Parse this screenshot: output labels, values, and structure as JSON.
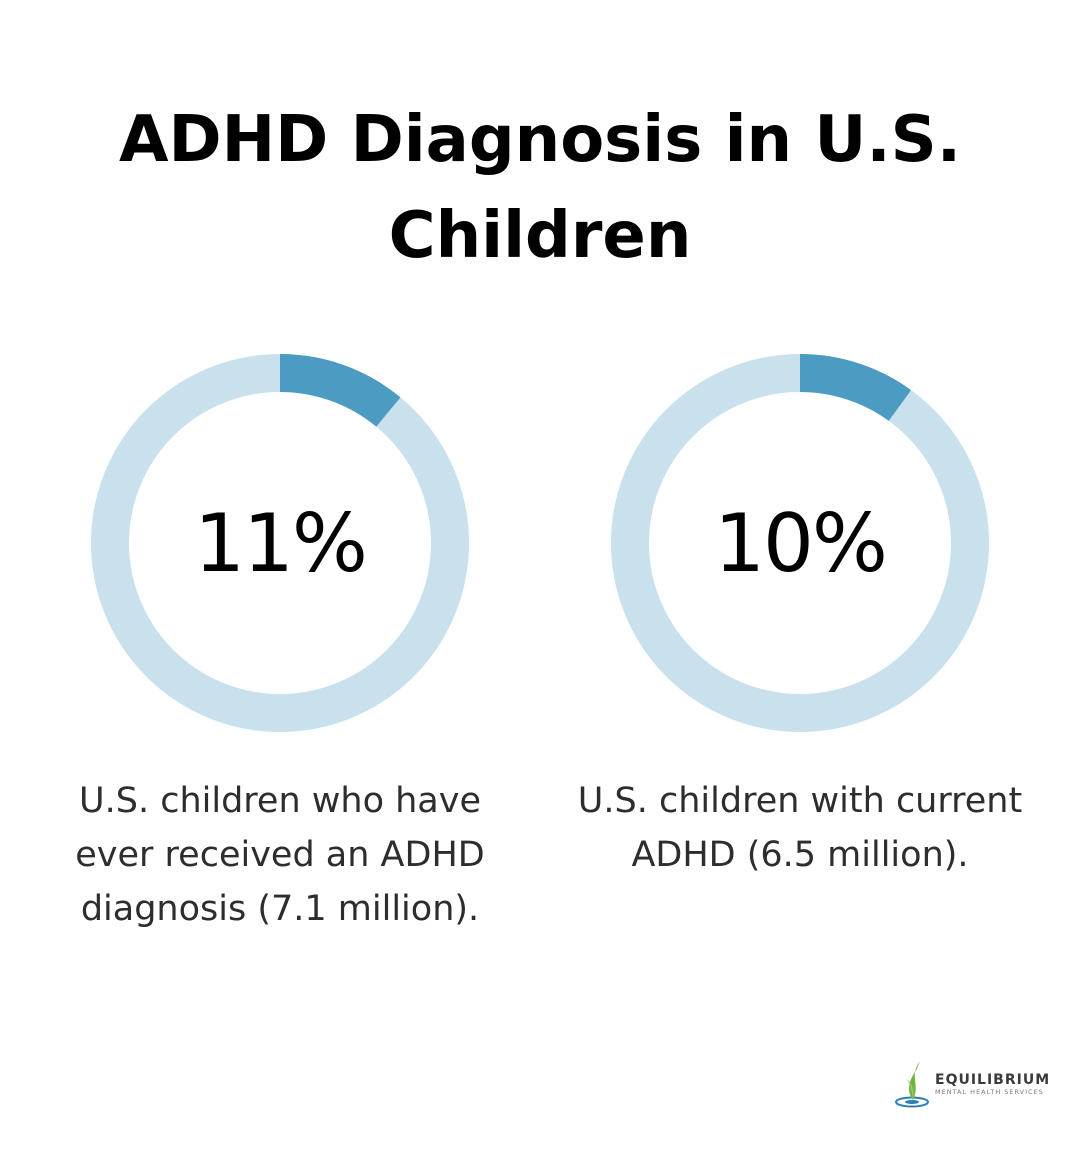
{
  "title_lines": [
    "ADHD Diagnosis in U.S.",
    "Children"
  ],
  "colors": {
    "track": "#c9e1ed",
    "fill": "#4b9bc3"
  },
  "chart_data": [
    {
      "type": "pie",
      "value": 11,
      "max": 100,
      "value_label": "11%",
      "caption_lines": [
        "U.S. children who have",
        "ever received an ADHD",
        "diagnosis (7.1 million)."
      ]
    },
    {
      "type": "pie",
      "value": 10,
      "max": 100,
      "value_label": "10%",
      "caption_lines": [
        "U.S. children with current",
        "ADHD (6.5 million)."
      ]
    }
  ],
  "logo": {
    "name": "EQUILIBRIUM",
    "subtitle": "MENTAL HEALTH SERVICES"
  }
}
